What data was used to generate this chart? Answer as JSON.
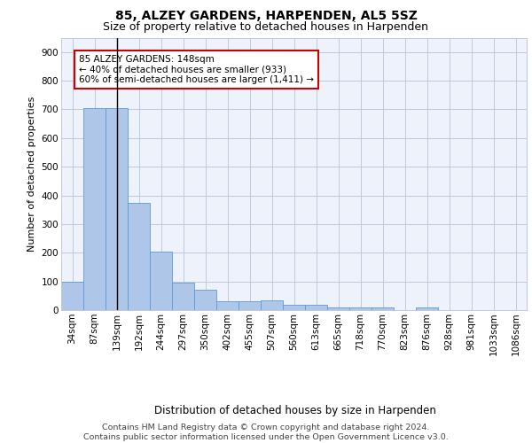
{
  "title1": "85, ALZEY GARDENS, HARPENDEN, AL5 5SZ",
  "title2": "Size of property relative to detached houses in Harpenden",
  "xlabel": "Distribution of detached houses by size in Harpenden",
  "ylabel": "Number of detached properties",
  "bar_labels": [
    "34sqm",
    "87sqm",
    "139sqm",
    "192sqm",
    "244sqm",
    "297sqm",
    "350sqm",
    "402sqm",
    "455sqm",
    "507sqm",
    "560sqm",
    "613sqm",
    "665sqm",
    "718sqm",
    "770sqm",
    "823sqm",
    "876sqm",
    "928sqm",
    "981sqm",
    "1033sqm",
    "1086sqm"
  ],
  "bar_values": [
    100,
    705,
    705,
    375,
    205,
    95,
    70,
    30,
    30,
    35,
    20,
    20,
    10,
    10,
    10,
    0,
    10,
    0,
    0,
    0,
    0
  ],
  "bar_color": "#aec6e8",
  "bar_edge_color": "#5b9bd5",
  "vline_x": 2,
  "vline_color": "#000000",
  "annotation_line1": "85 ALZEY GARDENS: 148sqm",
  "annotation_line2": "← 40% of detached houses are smaller (933)",
  "annotation_line3": "60% of semi-detached houses are larger (1,411) →",
  "box_color": "#cc0000",
  "ylim": [
    0,
    950
  ],
  "yticks": [
    0,
    100,
    200,
    300,
    400,
    500,
    600,
    700,
    800,
    900
  ],
  "footer1": "Contains HM Land Registry data © Crown copyright and database right 2024.",
  "footer2": "Contains public sector information licensed under the Open Government Licence v3.0.",
  "bg_color": "#eef2fb",
  "grid_color": "#c0c8dc",
  "title1_fontsize": 10,
  "title2_fontsize": 9,
  "xlabel_fontsize": 8.5,
  "ylabel_fontsize": 8,
  "tick_fontsize": 7.5,
  "annot_fontsize": 7.5,
  "footer_fontsize": 6.8
}
